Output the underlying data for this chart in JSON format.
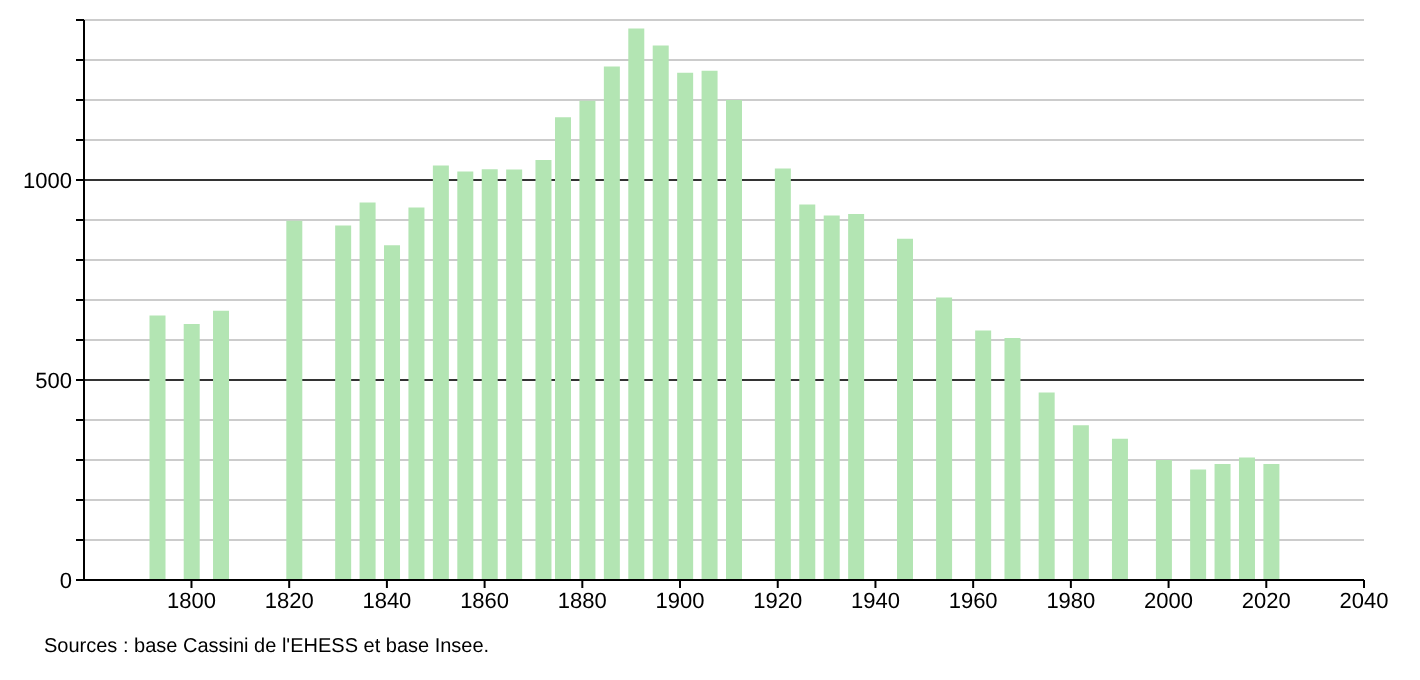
{
  "chart_data": {
    "type": "bar",
    "annotations": [
      "Sources : base Cassini de l'EHESS et base Insee."
    ],
    "x": [
      1793,
      1800,
      1806,
      1821,
      1831,
      1836,
      1841,
      1846,
      1851,
      1856,
      1861,
      1866,
      1872,
      1876,
      1881,
      1886,
      1891,
      1896,
      1901,
      1906,
      1911,
      1921,
      1926,
      1931,
      1936,
      1946,
      1954,
      1962,
      1968,
      1975,
      1982,
      1990,
      1999,
      2006,
      2011,
      2016,
      2021
    ],
    "values": [
      661,
      640,
      673,
      898,
      886,
      944,
      837,
      931,
      1036,
      1021,
      1027,
      1026,
      1050,
      1157,
      1198,
      1284,
      1379,
      1336,
      1268,
      1273,
      1200,
      1029,
      939,
      911,
      915,
      853,
      706,
      624,
      605,
      469,
      387,
      353,
      300,
      276,
      290,
      306,
      290
    ],
    "color": "#b3e5b3",
    "xlim": [
      1778,
      2040
    ],
    "xticks": [
      1800,
      1820,
      1840,
      1860,
      1880,
      1900,
      1920,
      1940,
      1960,
      1980,
      2000,
      2020,
      2040
    ],
    "ylim": [
      0,
      1400
    ],
    "yticks": [
      0,
      {
        "value": 100,
        "label": null
      },
      {
        "value": 200,
        "label": null
      },
      {
        "value": 300,
        "label": null
      },
      {
        "value": 400,
        "label": null
      },
      500,
      {
        "value": 600,
        "label": null
      },
      {
        "value": 700,
        "label": null
      },
      {
        "value": 800,
        "label": null
      },
      {
        "value": 900,
        "label": null
      },
      1000,
      {
        "value": 1100,
        "label": null
      },
      {
        "value": 1200,
        "label": null
      },
      {
        "value": 1300,
        "label": null
      },
      {
        "value": 1400,
        "label": null
      }
    ],
    "grid": "y",
    "legend": false
  }
}
